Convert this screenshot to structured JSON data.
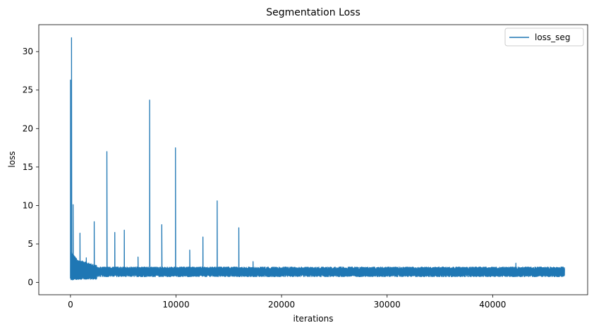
{
  "chart_data": {
    "type": "line",
    "title": "Segmentation Loss",
    "xlabel": "iterations",
    "ylabel": "loss",
    "xlim": [
      -3000,
      49000
    ],
    "ylim": [
      -1.6,
      33.5
    ],
    "xticks": [
      0,
      10000,
      20000,
      30000,
      40000
    ],
    "xtick_labels": [
      "0",
      "10000",
      "20000",
      "30000",
      "40000"
    ],
    "yticks": [
      0,
      5,
      10,
      15,
      20,
      25,
      30
    ],
    "ytick_labels": [
      "0",
      "5",
      "10",
      "15",
      "20",
      "25",
      "30"
    ],
    "grid": false,
    "legend": {
      "position": "top-right",
      "entries": [
        "loss_seg"
      ]
    },
    "series": [
      {
        "name": "loss_seg",
        "color": "#1f77b4",
        "total_iterations": 46800,
        "baseline_low": 0.75,
        "baseline_high": 2.0,
        "spikes": [
          {
            "x": 0,
            "y": 26.3
          },
          {
            "x": 100,
            "y": 31.8
          },
          {
            "x": 250,
            "y": 10.1
          },
          {
            "x": 900,
            "y": 6.4
          },
          {
            "x": 1500,
            "y": 3.2
          },
          {
            "x": 2250,
            "y": 7.9
          },
          {
            "x": 3450,
            "y": 17.0
          },
          {
            "x": 4200,
            "y": 6.5
          },
          {
            "x": 5100,
            "y": 6.8
          },
          {
            "x": 6400,
            "y": 3.3
          },
          {
            "x": 7500,
            "y": 23.7
          },
          {
            "x": 8650,
            "y": 7.5
          },
          {
            "x": 9950,
            "y": 17.5
          },
          {
            "x": 11300,
            "y": 4.2
          },
          {
            "x": 12550,
            "y": 5.9
          },
          {
            "x": 13900,
            "y": 10.6
          },
          {
            "x": 15950,
            "y": 7.1
          },
          {
            "x": 17300,
            "y": 2.7
          },
          {
            "x": 42200,
            "y": 2.5
          }
        ]
      }
    ]
  }
}
